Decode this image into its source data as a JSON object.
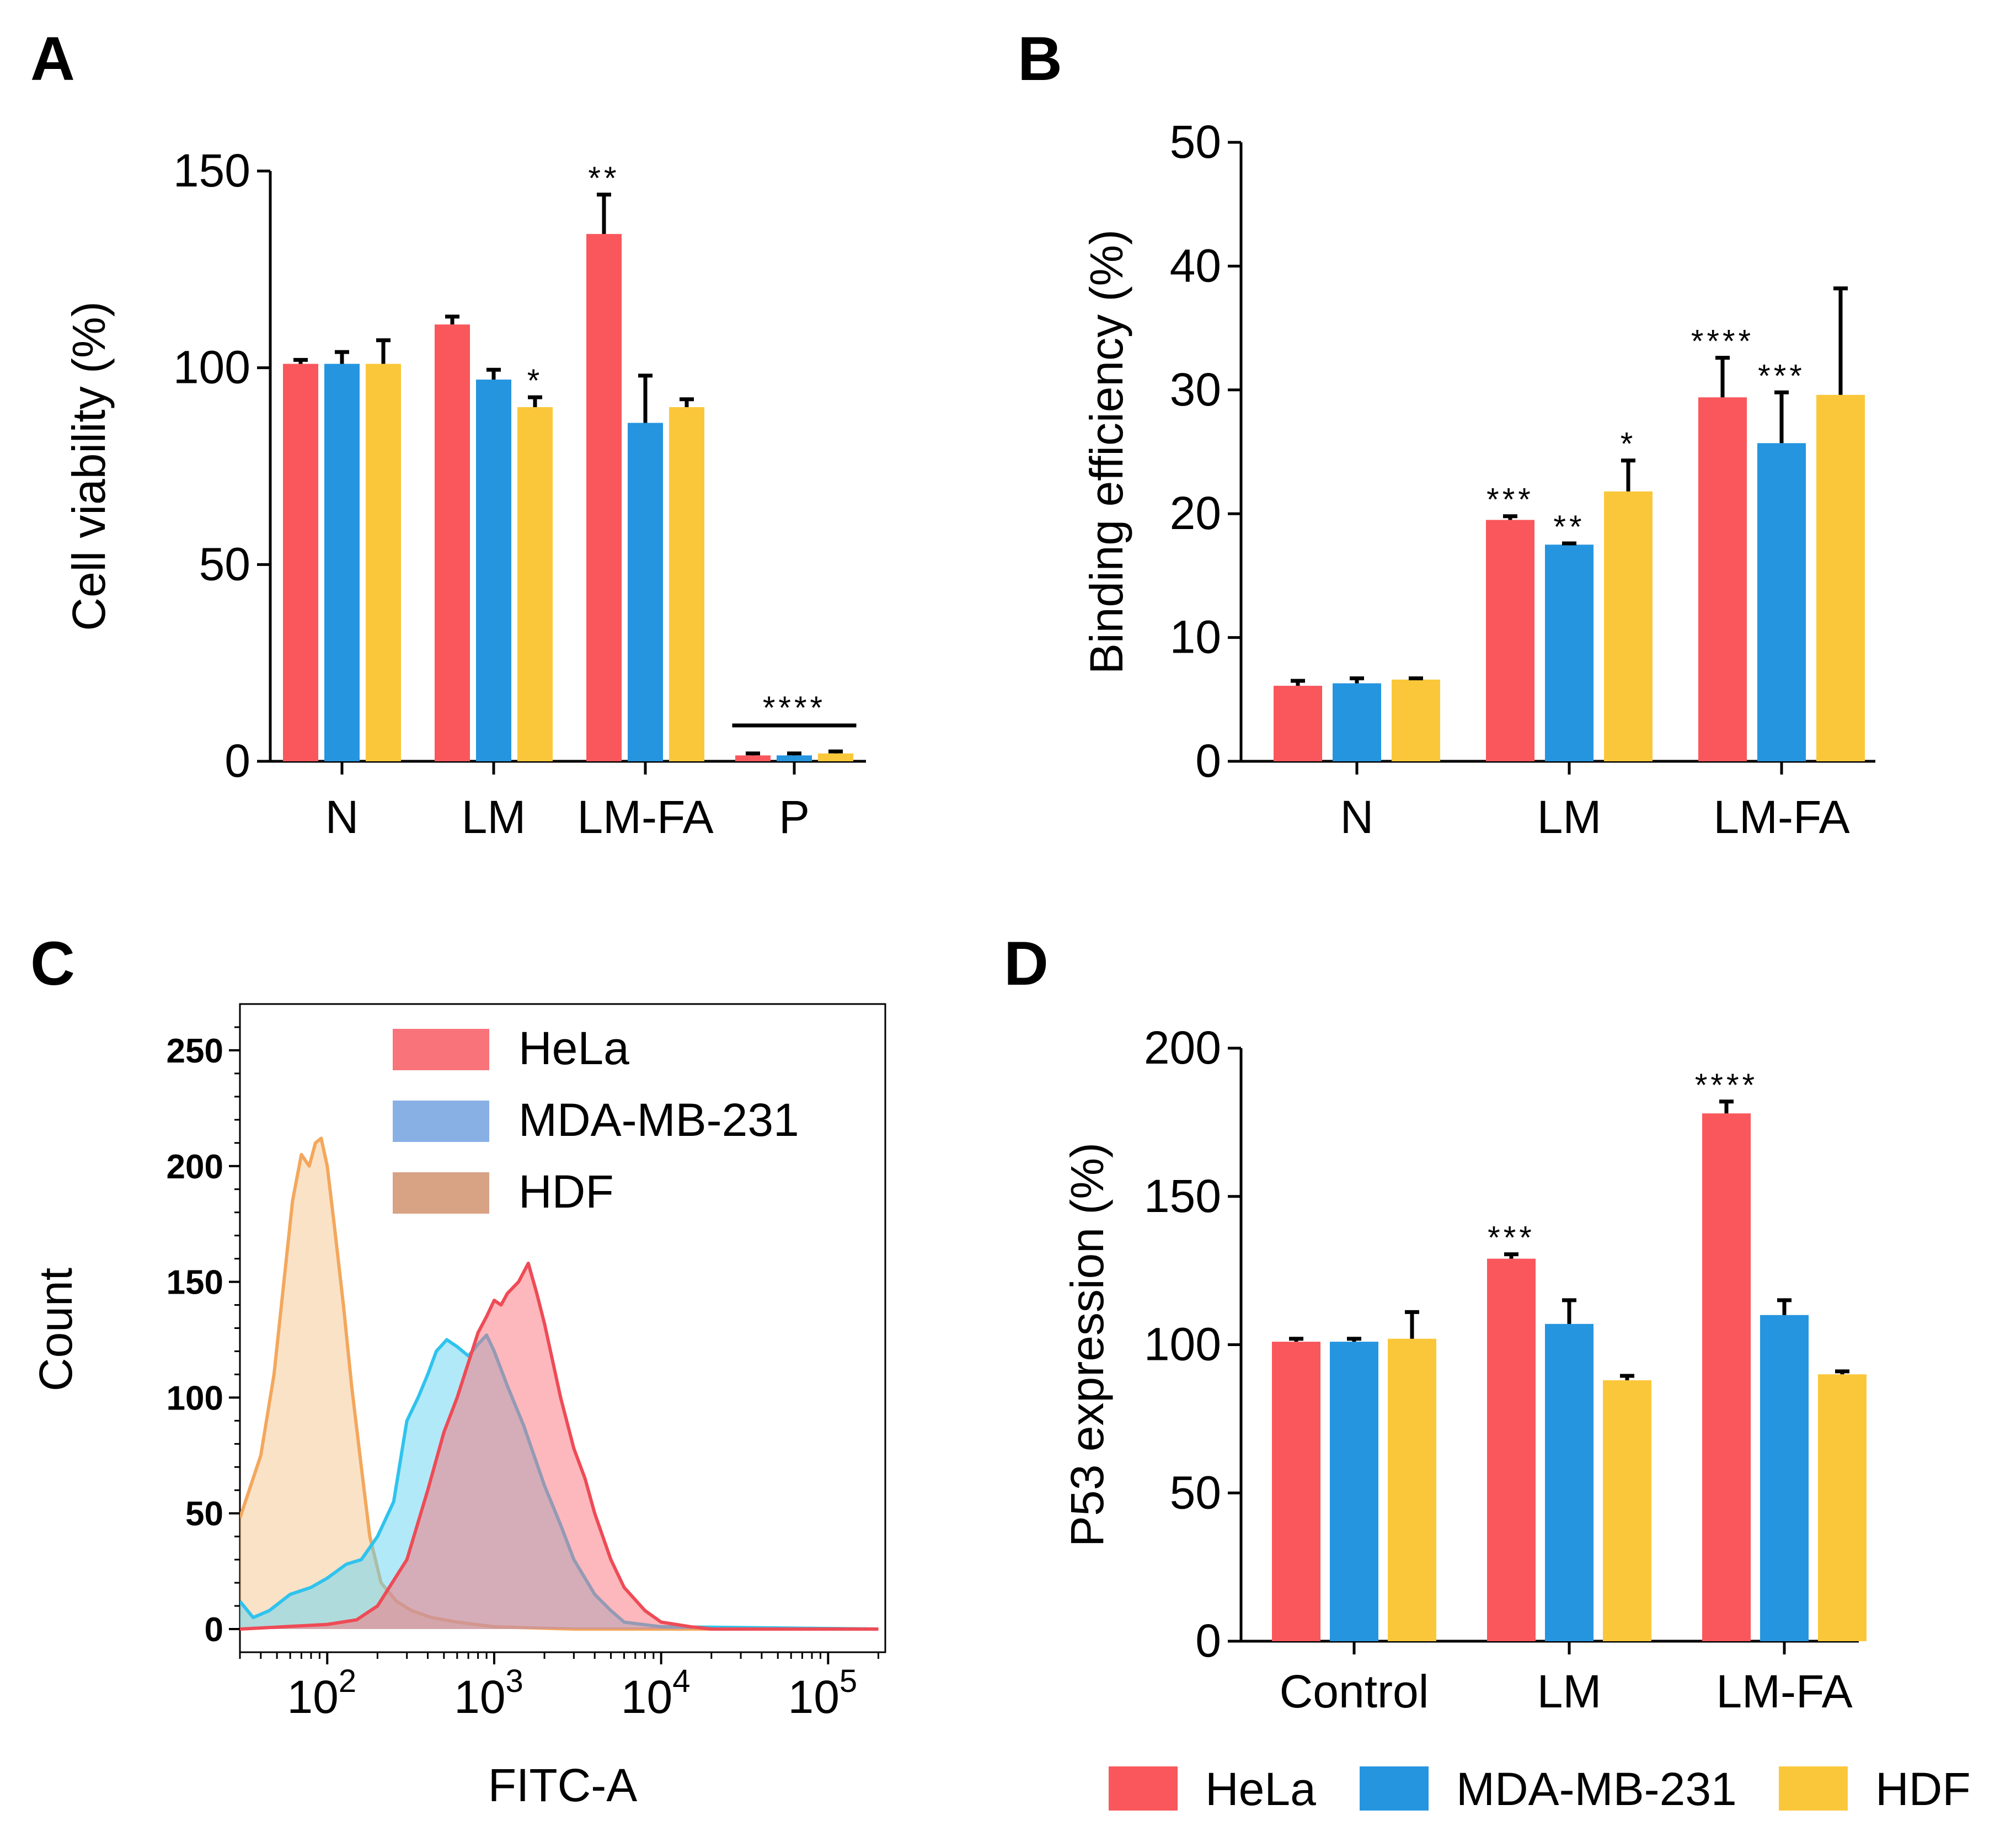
{
  "colors": {
    "HeLa": "#f9575c",
    "MDA-MB-231": "#2595df",
    "HDF": "#fbc73a",
    "error": "#000000"
  },
  "chart_data": [
    {
      "panel": "A",
      "type": "bar",
      "ylabel": "Cell viability  (%)",
      "ylim": [
        0,
        150
      ],
      "yticks": [
        "0",
        "50",
        "100",
        "150"
      ],
      "categories": [
        "N",
        "LM",
        "LM-FA",
        "P"
      ],
      "series": [
        {
          "name": "HeLa",
          "values": [
            101,
            111,
            134,
            1.5
          ],
          "errors": [
            1,
            2,
            10,
            0.5
          ]
        },
        {
          "name": "MDA-MB-231",
          "values": [
            101,
            97,
            86,
            1.5
          ],
          "errors": [
            3,
            2.5,
            12,
            0.5
          ]
        },
        {
          "name": "HDF",
          "values": [
            101,
            90,
            90,
            2
          ],
          "errors": [
            6,
            2.5,
            2,
            0.5
          ]
        }
      ],
      "annotations": [
        {
          "text": "*",
          "category": "LM",
          "series": "HDF"
        },
        {
          "text": "**",
          "category": "LM-FA",
          "series": "HeLa"
        },
        {
          "text": "****",
          "category": "P",
          "series": "MDA-MB-231"
        }
      ]
    },
    {
      "panel": "B",
      "type": "bar",
      "ylabel": "Binding efficiency  (%)",
      "ylim": [
        0,
        50
      ],
      "yticks": [
        "0",
        "10",
        "20",
        "30",
        "40",
        "50"
      ],
      "categories": [
        "N",
        "LM",
        "LM-FA"
      ],
      "series": [
        {
          "name": "HeLa",
          "values": [
            6.1,
            19.5,
            29.4
          ],
          "errors": [
            0.4,
            0.3,
            3.2
          ]
        },
        {
          "name": "MDA-MB-231",
          "values": [
            6.3,
            17.5,
            25.7
          ],
          "errors": [
            0.4,
            0.1,
            4.1
          ]
        },
        {
          "name": "HDF",
          "values": [
            6.6,
            21.8,
            29.6
          ],
          "errors": [
            0.1,
            2.5,
            8.6
          ]
        }
      ],
      "annotations": [
        {
          "text": "***",
          "category": "LM",
          "series": "HeLa"
        },
        {
          "text": "**",
          "category": "LM",
          "series": "MDA-MB-231"
        },
        {
          "text": "*",
          "category": "LM",
          "series": "HDF"
        },
        {
          "text": "****",
          "category": "LM-FA",
          "series": "HeLa"
        },
        {
          "text": "***",
          "category": "LM-FA",
          "series": "MDA-MB-231"
        }
      ]
    },
    {
      "panel": "C",
      "type": "area",
      "xlabel": "FITC-A",
      "ylabel": "Count",
      "xscale": "log",
      "xlim": [
        30,
        220000
      ],
      "ylim": [
        -10,
        270
      ],
      "yticks": [
        "0",
        "50",
        "100",
        "150",
        "200",
        "250"
      ],
      "xticks": [
        {
          "value": 100,
          "base": "10",
          "exp": "2"
        },
        {
          "value": 1000,
          "base": "10",
          "exp": "3"
        },
        {
          "value": 10000,
          "base": "10",
          "exp": "4"
        },
        {
          "value": 100000,
          "base": "10",
          "exp": "5"
        }
      ],
      "series": [
        {
          "name": "HDF",
          "fill": "#f5c590",
          "stroke": "#f3a75c",
          "points": [
            [
              30,
              48
            ],
            [
              40,
              75
            ],
            [
              48,
              110
            ],
            [
              55,
              150
            ],
            [
              62,
              185
            ],
            [
              70,
              205
            ],
            [
              78,
              200
            ],
            [
              85,
              210
            ],
            [
              92,
              212
            ],
            [
              100,
              200
            ],
            [
              110,
              175
            ],
            [
              125,
              140
            ],
            [
              140,
              105
            ],
            [
              160,
              70
            ],
            [
              180,
              40
            ],
            [
              210,
              20
            ],
            [
              260,
              12
            ],
            [
              320,
              8
            ],
            [
              420,
              5
            ],
            [
              600,
              3
            ],
            [
              1000,
              1
            ],
            [
              3000,
              0
            ],
            [
              200000,
              0
            ]
          ]
        },
        {
          "name": "MDA-MB-231",
          "fill": "#63d3f1",
          "stroke": "#2fc3ee",
          "points": [
            [
              30,
              12
            ],
            [
              36,
              5
            ],
            [
              45,
              8
            ],
            [
              60,
              15
            ],
            [
              80,
              18
            ],
            [
              100,
              22
            ],
            [
              130,
              28
            ],
            [
              160,
              30
            ],
            [
              200,
              40
            ],
            [
              250,
              55
            ],
            [
              300,
              90
            ],
            [
              350,
              100
            ],
            [
              400,
              110
            ],
            [
              450,
              120
            ],
            [
              520,
              125
            ],
            [
              600,
              122
            ],
            [
              700,
              118
            ],
            [
              800,
              123
            ],
            [
              900,
              127
            ],
            [
              1000,
              120
            ],
            [
              1200,
              105
            ],
            [
              1500,
              88
            ],
            [
              2000,
              62
            ],
            [
              2500,
              45
            ],
            [
              3000,
              30
            ],
            [
              4000,
              15
            ],
            [
              5000,
              8
            ],
            [
              6000,
              3
            ],
            [
              10000,
              1
            ],
            [
              200000,
              0
            ]
          ]
        },
        {
          "name": "HeLa",
          "fill": "#f9727a",
          "stroke": "#ee4b56",
          "points": [
            [
              30,
              0
            ],
            [
              100,
              2
            ],
            [
              150,
              4
            ],
            [
              200,
              10
            ],
            [
              300,
              30
            ],
            [
              400,
              60
            ],
            [
              500,
              85
            ],
            [
              600,
              100
            ],
            [
              700,
              115
            ],
            [
              800,
              128
            ],
            [
              900,
              135
            ],
            [
              1000,
              142
            ],
            [
              1100,
              140
            ],
            [
              1200,
              145
            ],
            [
              1400,
              150
            ],
            [
              1600,
              158
            ],
            [
              1800,
              145
            ],
            [
              2000,
              132
            ],
            [
              2500,
              100
            ],
            [
              3000,
              78
            ],
            [
              3500,
              65
            ],
            [
              4000,
              50
            ],
            [
              5000,
              30
            ],
            [
              6000,
              18
            ],
            [
              8000,
              8
            ],
            [
              10000,
              3
            ],
            [
              15000,
              1
            ],
            [
              20000,
              0
            ],
            [
              200000,
              0
            ]
          ]
        }
      ],
      "legend": [
        {
          "label": "HeLa",
          "color": "#f8737a"
        },
        {
          "label": "MDA-MB-231",
          "color": "#89b0e5"
        },
        {
          "label": "HDF",
          "color": "#d8a285"
        }
      ]
    },
    {
      "panel": "D",
      "type": "bar",
      "ylabel": "P53 expression (%)",
      "ylim": [
        0,
        200
      ],
      "yticks": [
        "0",
        "50",
        "100",
        "150",
        "200"
      ],
      "categories": [
        "Control",
        "LM",
        "LM-FA"
      ],
      "series": [
        {
          "name": "HeLa",
          "values": [
            101,
            129,
            178
          ],
          "errors": [
            1,
            1.5,
            4
          ]
        },
        {
          "name": "MDA-MB-231",
          "values": [
            101,
            107,
            110
          ],
          "errors": [
            1,
            8,
            5
          ]
        },
        {
          "name": "HDF",
          "values": [
            102,
            88,
            90
          ],
          "errors": [
            9,
            1.5,
            1
          ]
        }
      ],
      "annotations": [
        {
          "text": "***",
          "category": "LM",
          "series": "HeLa"
        },
        {
          "text": "****",
          "category": "LM-FA",
          "series": "HeLa"
        }
      ]
    }
  ],
  "panels": {
    "a": "A",
    "b": "B",
    "c": "C",
    "d": "D"
  },
  "bar_legend": [
    "HeLa",
    "MDA-MB-231",
    "HDF"
  ]
}
